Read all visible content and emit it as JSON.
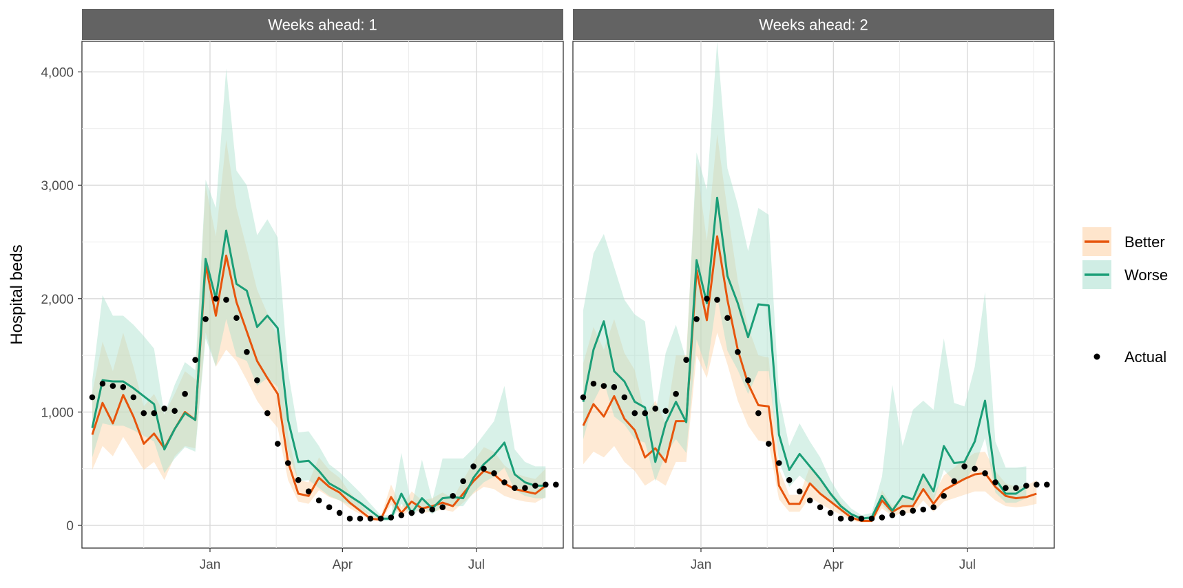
{
  "chart_data": {
    "type": "line",
    "ylabel": "Hospital beds",
    "xlabel": "",
    "ylim": [
      -200,
      4270
    ],
    "y_ticks": [
      0,
      1000,
      2000,
      3000,
      4000
    ],
    "y_tick_labels": [
      "0",
      "1,000",
      "2,000",
      "3,000",
      "4,000"
    ],
    "x_range": [
      "2020-10-06",
      "2021-08-29"
    ],
    "x_ticks": [
      "2021-01-01",
      "2021-04-01",
      "2021-07-01"
    ],
    "x_tick_labels": [
      "Jan",
      "Apr",
      "Jul"
    ],
    "grid": true,
    "legend_position": "right",
    "legend": {
      "better_label": "Better",
      "worse_label": "Worse",
      "actual_label": "Actual"
    },
    "colors": {
      "better": "#e6550d",
      "worse": "#1b9e77",
      "better_ribbon": "#fdd0a2",
      "worse_ribbon": "#a8dfcd",
      "actual": "#000000",
      "strip": "#636363"
    },
    "actual": {
      "dates": [
        "2020-10-13",
        "2020-10-20",
        "2020-10-27",
        "2020-11-03",
        "2020-11-10",
        "2020-11-17",
        "2020-11-24",
        "2020-12-01",
        "2020-12-08",
        "2020-12-15",
        "2020-12-22",
        "2020-12-29",
        "2021-01-05",
        "2021-01-12",
        "2021-01-19",
        "2021-01-26",
        "2021-02-02",
        "2021-02-09",
        "2021-02-16",
        "2021-02-23",
        "2021-03-02",
        "2021-03-09",
        "2021-03-16",
        "2021-03-23",
        "2021-03-30",
        "2021-04-06",
        "2021-04-13",
        "2021-04-20",
        "2021-04-27",
        "2021-05-04",
        "2021-05-11",
        "2021-05-18",
        "2021-05-25",
        "2021-06-01",
        "2021-06-08",
        "2021-06-15",
        "2021-06-22",
        "2021-06-29",
        "2021-07-06",
        "2021-07-13",
        "2021-07-20",
        "2021-07-27",
        "2021-08-03",
        "2021-08-10",
        "2021-08-17",
        "2021-08-24"
      ],
      "values": [
        1130,
        1250,
        1230,
        1220,
        1130,
        990,
        990,
        1030,
        1010,
        1160,
        1460,
        1820,
        2000,
        1990,
        1830,
        1530,
        1280,
        990,
        720,
        550,
        400,
        300,
        220,
        160,
        110,
        60,
        60,
        60,
        60,
        70,
        90,
        110,
        130,
        140,
        160,
        260,
        390,
        520,
        500,
        460,
        380,
        330,
        330,
        350,
        360,
        360
      ]
    },
    "panels": [
      {
        "title": "Weeks ahead: 1",
        "dates": [
          "2020-10-13",
          "2020-10-20",
          "2020-10-27",
          "2020-11-03",
          "2020-11-10",
          "2020-11-17",
          "2020-11-24",
          "2020-12-01",
          "2020-12-08",
          "2020-12-15",
          "2020-12-22",
          "2020-12-29",
          "2021-01-05",
          "2021-01-12",
          "2021-01-19",
          "2021-01-26",
          "2021-02-02",
          "2021-02-09",
          "2021-02-16",
          "2021-02-23",
          "2021-03-02",
          "2021-03-09",
          "2021-03-16",
          "2021-03-23",
          "2021-03-30",
          "2021-04-06",
          "2021-04-13",
          "2021-04-20",
          "2021-04-27",
          "2021-05-04",
          "2021-05-11",
          "2021-05-18",
          "2021-05-25",
          "2021-06-01",
          "2021-06-08",
          "2021-06-15",
          "2021-06-22",
          "2021-06-29",
          "2021-07-06",
          "2021-07-13",
          "2021-07-20",
          "2021-07-27",
          "2021-08-03",
          "2021-08-10",
          "2021-08-17",
          "2021-08-24"
        ],
        "series": [
          {
            "name": "Better",
            "values": [
              800,
              1080,
              900,
              1150,
              960,
              720,
              810,
              680,
              850,
              1000,
              930,
              2300,
              1850,
              2380,
              1970,
              1710,
              1450,
              1300,
              1160,
              560,
              280,
              260,
              420,
              340,
              290,
              200,
              130,
              60,
              50,
              250,
              110,
              210,
              150,
              170,
              200,
              170,
              280,
              390,
              480,
              450,
              370,
              320,
              300,
              280,
              350
            ],
            "lower": [
              490,
              700,
              610,
              780,
              640,
              490,
              560,
              400,
              610,
              700,
              680,
              1700,
              1400,
              1550,
              1450,
              1280,
              1100,
              970,
              860,
              400,
              210,
              190,
              310,
              250,
              220,
              150,
              100,
              45,
              40,
              180,
              80,
              150,
              110,
              120,
              140,
              120,
              200,
              280,
              340,
              320,
              260,
              230,
              210,
              200,
              250
            ],
            "upper": [
              1170,
              1620,
              1360,
              1700,
              1400,
              1050,
              1160,
              980,
              1160,
              1360,
              1290,
              3000,
              2550,
              3400,
              2800,
              2440,
              2080,
              1870,
              1660,
              800,
              400,
              380,
              600,
              490,
              420,
              290,
              190,
              90,
              75,
              360,
              160,
              300,
              220,
              240,
              290,
              240,
              400,
              560,
              690,
              650,
              530,
              460,
              430,
              410,
              500
            ]
          },
          {
            "name": "Worse",
            "values": [
              860,
              1280,
              1270,
              1270,
              1210,
              1140,
              1070,
              670,
              850,
              990,
              930,
              2350,
              2000,
              2600,
              2130,
              2070,
              1750,
              1850,
              1740,
              930,
              560,
              570,
              480,
              370,
              320,
              260,
              200,
              130,
              60,
              60,
              280,
              110,
              240,
              150,
              240,
              250,
              240,
              420,
              540,
              620,
              730,
              450,
              380,
              350,
              350
            ],
            "lower": [
              600,
              900,
              880,
              880,
              840,
              790,
              740,
              460,
              590,
              690,
              650,
              1650,
              1400,
              1820,
              1490,
              1450,
              1230,
              1300,
              1220,
              650,
              390,
              400,
              330,
              260,
              220,
              180,
              140,
              90,
              40,
              40,
              190,
              75,
              170,
              100,
              170,
              170,
              170,
              290,
              380,
              430,
              510,
              310,
              260,
              240,
              240
            ],
            "upper": [
              1280,
              2030,
              1850,
              1850,
              1770,
              1670,
              1560,
              980,
              1240,
              1440,
              1370,
              3050,
              2800,
              4030,
              3130,
              3000,
              2560,
              2700,
              2540,
              1360,
              820,
              830,
              700,
              540,
              470,
              380,
              290,
              190,
              90,
              90,
              640,
              170,
              580,
              220,
              590,
              590,
              590,
              680,
              800,
              920,
              1230,
              670,
              560,
              520,
              520
            ]
          }
        ]
      },
      {
        "title": "Weeks ahead: 2",
        "dates": [
          "2020-10-13",
          "2020-10-20",
          "2020-10-27",
          "2020-11-03",
          "2020-11-10",
          "2020-11-17",
          "2020-11-24",
          "2020-12-01",
          "2020-12-08",
          "2020-12-15",
          "2020-12-22",
          "2020-12-29",
          "2021-01-05",
          "2021-01-12",
          "2021-01-19",
          "2021-01-26",
          "2021-02-02",
          "2021-02-09",
          "2021-02-16",
          "2021-02-23",
          "2021-03-02",
          "2021-03-09",
          "2021-03-16",
          "2021-03-23",
          "2021-03-30",
          "2021-04-06",
          "2021-04-13",
          "2021-04-20",
          "2021-04-27",
          "2021-05-04",
          "2021-05-11",
          "2021-05-18",
          "2021-05-25",
          "2021-06-01",
          "2021-06-08",
          "2021-06-15",
          "2021-06-22",
          "2021-06-29",
          "2021-07-06",
          "2021-07-13",
          "2021-07-20",
          "2021-07-27",
          "2021-08-03",
          "2021-08-10",
          "2021-08-17",
          "2021-08-24"
        ],
        "series": [
          {
            "name": "Better",
            "values": [
              880,
              1070,
              960,
              1140,
              940,
              840,
              600,
              680,
              560,
              920,
              920,
              2250,
              1810,
              2550,
              1990,
              1550,
              1250,
              1060,
              1050,
              350,
              190,
              190,
              370,
              280,
              210,
              140,
              70,
              40,
              40,
              220,
              120,
              170,
              170,
              320,
              190,
              310,
              360,
              410,
              450,
              460,
              340,
              260,
              240,
              250,
              280
            ],
            "lower": [
              540,
              650,
              600,
              700,
              560,
              480,
              350,
              410,
              350,
              560,
              560,
              1500,
              1300,
              1700,
              1420,
              1100,
              880,
              750,
              730,
              230,
              120,
              120,
              250,
              190,
              140,
              95,
              45,
              25,
              25,
              150,
              80,
              110,
              110,
              220,
              120,
              210,
              240,
              270,
              300,
              300,
              220,
              170,
              160,
              170,
              190
            ],
            "upper": [
              1430,
              1750,
              1550,
              1820,
              1520,
              1370,
              970,
              1100,
              900,
              1500,
              1500,
              3200,
              2510,
              3450,
              2780,
              2160,
              1750,
              1500,
              1480,
              500,
              270,
              270,
              520,
              390,
              300,
              200,
              100,
              60,
              60,
              310,
              170,
              240,
              240,
              450,
              270,
              440,
              510,
              580,
              640,
              650,
              480,
              370,
              340,
              350,
              400
            ],
            "note_values_only_in_data": ""
          },
          {
            "name": "Worse",
            "values": [
              1090,
              1550,
              1800,
              1360,
              1270,
              1090,
              1040,
              560,
              900,
              1090,
              910,
              2340,
              1960,
              2890,
              2200,
              1960,
              1660,
              1950,
              1940,
              800,
              490,
              630,
              520,
              410,
              280,
              170,
              100,
              60,
              70,
              260,
              130,
              260,
              230,
              450,
              300,
              700,
              550,
              560,
              740,
              1100,
              410,
              280,
              280,
              340
            ],
            "lower": [
              760,
              1090,
              1270,
              960,
              890,
              760,
              730,
              390,
              630,
              760,
              640,
              1640,
              1370,
              2020,
              1540,
              1370,
              1160,
              1360,
              1360,
              560,
              340,
              440,
              360,
              290,
              200,
              120,
              70,
              40,
              50,
              180,
              90,
              180,
              160,
              320,
              210,
              490,
              390,
              390,
              520,
              770,
              290,
              200,
              200,
              240
            ],
            "upper": [
              1900,
              2400,
              2570,
              2280,
              1990,
              1860,
              1800,
              980,
              1520,
              1770,
              1460,
              3290,
              2960,
              4270,
              3150,
              2830,
              2420,
              2800,
              2740,
              1140,
              700,
              900,
              740,
              600,
              400,
              250,
              150,
              90,
              110,
              430,
              1240,
              700,
              1020,
              1100,
              1020,
              1650,
              1080,
              1050,
              1400,
              2060,
              740,
              510,
              510,
              520
            ]
          }
        ]
      }
    ]
  }
}
